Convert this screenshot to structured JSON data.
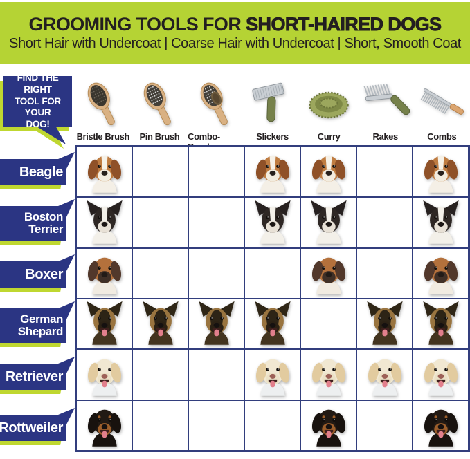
{
  "header": {
    "title_prefix": "GROOMING TOOLS FOR ",
    "title_bold": "SHORT-HAIRED DOGS",
    "subtitle": "Short Hair with Undercoat | Coarse Hair with Undercoat | Short, Smooth Coat"
  },
  "callout": {
    "text": "FIND THE RIGHT\nTOOL FOR YOUR\nDOG!"
  },
  "palette": {
    "banner_green": "#b5d334",
    "accent_green": "#bfd730",
    "navy": "#2b3583",
    "grid_line": "#323e7d",
    "text_dark": "#231f20",
    "label_text_white": "#ffffff"
  },
  "tool_art": {
    "wood": "#d9b183",
    "wood_dark": "#b48a55",
    "metal": "#c9ced3",
    "metal_dark": "#8f969c",
    "green": "#76814b",
    "green_dark": "#59633a",
    "curry_light": "#9ca75d",
    "curry_mid": "#7e8946",
    "curry_dark": "#6c763b",
    "handle_wood": "#dba570"
  },
  "tools": [
    {
      "label": "Bristle Brush",
      "type": "bristle",
      "icon": "bristle-brush-icon"
    },
    {
      "label": "Pin Brush",
      "type": "pin",
      "icon": "pin-brush-icon"
    },
    {
      "label": "Combo-Brush",
      "type": "combo",
      "icon": "combo-brush-icon"
    },
    {
      "label": "Slickers",
      "type": "slicker",
      "icon": "slicker-brush-icon"
    },
    {
      "label": "Curry",
      "type": "curry",
      "icon": "curry-brush-icon"
    },
    {
      "label": "Rakes",
      "type": "rake",
      "icon": "rake-icon"
    },
    {
      "label": "Combs",
      "type": "comb",
      "icon": "comb-icon"
    }
  ],
  "breeds": [
    {
      "label": "Beagle",
      "lines": "Beagle",
      "art": {
        "ear": "floppy",
        "earC": "#8f5128",
        "head": "#bf7c41",
        "blaze": "#f6f1e7",
        "muzzle": "#f2ecdf",
        "nose": "#27211d",
        "chest": "#f4efe6",
        "tongue": false
      }
    },
    {
      "label": "Boston Terrier",
      "lines": "Boston\nTerrier",
      "art": {
        "ear": "pointy",
        "earC": "#272120",
        "head": "#2e2724",
        "blaze": "#f3f0e9",
        "muzzle": "#e8e1d6",
        "nose": "#1b1614",
        "chest": "#f3f0e9",
        "tongue": false
      }
    },
    {
      "label": "Boxer",
      "lines": "Boxer",
      "art": {
        "ear": "floppy",
        "earC": "#52382b",
        "head": "#b4713c",
        "blaze": "",
        "muzzle": "#403027",
        "nose": "#221b17",
        "chest": "#f1ebe1",
        "tongue": false
      }
    },
    {
      "label": "German Shepard",
      "lines": "German\nShepard",
      "art": {
        "ear": "pointy",
        "earC": "#2f2616",
        "head": "#99743f",
        "mask": "#2d2416",
        "blaze": "",
        "muzzle": "#2b2114",
        "nose": "#151110",
        "chest": "#43341f",
        "tongue": true
      }
    },
    {
      "label": "Retriever",
      "lines": "Retriever",
      "art": {
        "ear": "floppy",
        "earC": "#e2cb9f",
        "head": "#f1e8d2",
        "blaze": "",
        "muzzle": "#ebe1c6",
        "nose": "#9d6157",
        "chest": "#edeff0",
        "tongue": true
      }
    },
    {
      "label": "Rottweiler",
      "lines": "Rottweiler",
      "art": {
        "ear": "floppy",
        "earC": "#18120e",
        "head": "#221a14",
        "blaze": "",
        "muzzle": "#9d5f2b",
        "nose": "#161110",
        "chest": "#18120e",
        "tongue": true,
        "brow": "#9d5f2b"
      }
    }
  ],
  "chart_data": {
    "type": "table",
    "title": "GROOMING TOOLS FOR SHORT-HAIRED DOGS",
    "subtitle": "Short Hair with Undercoat | Coarse Hair with Undercoat | Short, Smooth Coat",
    "columns": [
      "Bristle Brush",
      "Pin Brush",
      "Combo-Brush",
      "Slickers",
      "Curry",
      "Rakes",
      "Combs"
    ],
    "rows": [
      "Beagle",
      "Boston Terrier",
      "Boxer",
      "German Shepard",
      "Retriever",
      "Rottweiler"
    ],
    "cell_marker": "dog-head-image (presence = recommended tool)",
    "matrix": [
      [
        1,
        0,
        0,
        1,
        1,
        0,
        1
      ],
      [
        1,
        0,
        0,
        1,
        1,
        0,
        1
      ],
      [
        1,
        0,
        0,
        0,
        1,
        0,
        1
      ],
      [
        1,
        1,
        1,
        1,
        0,
        1,
        1
      ],
      [
        1,
        0,
        0,
        1,
        1,
        1,
        1
      ],
      [
        1,
        0,
        0,
        0,
        1,
        0,
        1
      ]
    ]
  }
}
